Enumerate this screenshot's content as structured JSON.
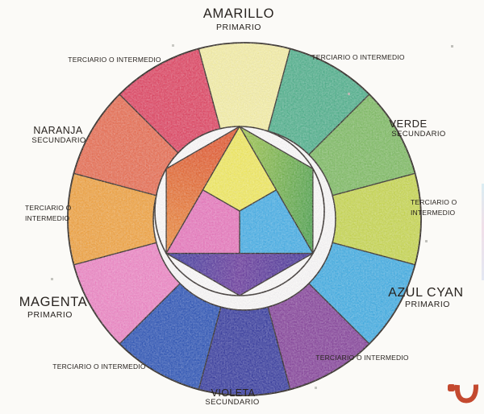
{
  "page": {
    "background": "#FBFAF7"
  },
  "labels": {
    "amarillo": {
      "name": "AMARILLO",
      "tone": "PRIMARIO"
    },
    "verde": {
      "name": "VERDE",
      "tone": "SECUNDARIO"
    },
    "azul_cyan": {
      "name": "AZUL CYAN",
      "tone": "PRIMARIO"
    },
    "violeta": {
      "name": "VIOLETA",
      "tone": "SECUNDARIO"
    },
    "magenta": {
      "name": "MAGENTA",
      "tone": "PRIMARIO"
    },
    "naranja": {
      "name": "NARANJA",
      "tone": "SECUNDARIO"
    },
    "terciario": "TERCIARIO O INTERMEDIO",
    "terciario_line1": "TERCIARIO O",
    "terciario_line2": "INTERMEDIO"
  },
  "wheel": {
    "outline": "#2E2822",
    "ring_segments_clockwise_from_top": [
      {
        "name": "amarillo",
        "tone": "primario",
        "color": "#F6F0A4"
      },
      {
        "name": "terciario-amarillo-verde",
        "tone": "terciario",
        "color": "#50B18A"
      },
      {
        "name": "verde",
        "tone": "secundario",
        "color": "#7FBD62"
      },
      {
        "name": "terciario-verde-cyan",
        "tone": "terciario",
        "color": "#C8D84F"
      },
      {
        "name": "azul-cyan",
        "tone": "primario",
        "color": "#42AEE2"
      },
      {
        "name": "terciario-cyan-violeta",
        "tone": "terciario",
        "color": "#87459A"
      },
      {
        "name": "violeta",
        "tone": "secundario",
        "color": "#383D9E"
      },
      {
        "name": "terciario-violeta-magenta",
        "tone": "terciario",
        "color": "#2D55B5"
      },
      {
        "name": "magenta",
        "tone": "primario",
        "color": "#EE85C2"
      },
      {
        "name": "terciario-magenta-naranja",
        "tone": "terciario",
        "color": "#F1A33E"
      },
      {
        "name": "naranja",
        "tone": "secundario",
        "color": "#E96E50"
      },
      {
        "name": "terciario-naranja-amarillo",
        "tone": "terciario",
        "color": "#E04560"
      }
    ],
    "inner_triangle_primaries": [
      {
        "name": "amarillo",
        "color": "#F1EA5C"
      },
      {
        "name": "cyan",
        "color": "#45AEE4"
      },
      {
        "name": "magenta",
        "color": "#E877BA"
      }
    ],
    "inner_hexagon_secondaries": [
      {
        "name": "naranja",
        "colors": [
          "#E35A2D",
          "#EC8A3B"
        ]
      },
      {
        "name": "verde",
        "colors": [
          "#BCD34B",
          "#4EA24B"
        ]
      },
      {
        "name": "violeta",
        "colors": [
          "#3A3C9D",
          "#6C3D9C",
          "#403697"
        ]
      }
    ]
  },
  "logo": {
    "color": "#C4492F"
  }
}
